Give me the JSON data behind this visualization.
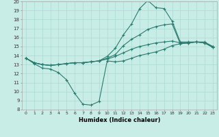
{
  "xlabel": "Humidex (Indice chaleur)",
  "xlim": [
    -0.5,
    23.5
  ],
  "ylim": [
    8,
    20
  ],
  "yticks": [
    8,
    9,
    10,
    11,
    12,
    13,
    14,
    15,
    16,
    17,
    18,
    19,
    20
  ],
  "xticks": [
    0,
    1,
    2,
    3,
    4,
    5,
    6,
    7,
    8,
    9,
    10,
    11,
    12,
    13,
    14,
    15,
    16,
    17,
    18,
    19,
    20,
    21,
    22,
    23
  ],
  "bg_color": "#c8ece6",
  "line_color": "#2a7b6f",
  "grid_color": "#b0ddd6",
  "curves": [
    {
      "x": [
        0,
        1,
        2,
        3,
        4,
        5,
        6,
        7,
        8,
        9,
        10,
        11,
        12,
        13,
        14,
        15,
        16,
        17,
        18,
        19,
        20,
        21,
        22,
        23
      ],
      "y": [
        13.7,
        13.1,
        12.6,
        12.5,
        12.1,
        11.3,
        9.8,
        8.6,
        8.5,
        8.9,
        13.4,
        13.3,
        13.4,
        13.7,
        14.0,
        14.2,
        14.4,
        14.7,
        15.1,
        15.3,
        15.4,
        15.5,
        15.4,
        14.9
      ]
    },
    {
      "x": [
        0,
        1,
        2,
        3,
        4,
        5,
        6,
        7,
        8,
        9,
        10,
        11,
        12,
        13,
        14,
        15,
        16,
        17,
        18,
        19,
        20,
        21,
        22,
        23
      ],
      "y": [
        13.7,
        13.2,
        13.0,
        12.9,
        13.0,
        13.1,
        13.2,
        13.2,
        13.3,
        13.4,
        13.9,
        14.8,
        16.3,
        17.5,
        19.2,
        20.1,
        19.3,
        19.2,
        17.8,
        15.5,
        15.5,
        15.5,
        15.5,
        15.0
      ]
    },
    {
      "x": [
        0,
        1,
        2,
        3,
        4,
        5,
        6,
        7,
        8,
        9,
        10,
        11,
        12,
        13,
        14,
        15,
        16,
        17,
        18,
        19,
        20,
        21,
        22,
        23
      ],
      "y": [
        13.7,
        13.2,
        13.0,
        12.9,
        13.0,
        13.1,
        13.2,
        13.2,
        13.3,
        13.4,
        13.7,
        14.1,
        15.1,
        15.8,
        16.3,
        16.9,
        17.2,
        17.4,
        17.5,
        15.3,
        15.4,
        15.5,
        15.4,
        15.0
      ]
    },
    {
      "x": [
        0,
        1,
        2,
        3,
        4,
        5,
        6,
        7,
        8,
        9,
        10,
        11,
        12,
        13,
        14,
        15,
        16,
        17,
        18,
        19,
        20,
        21,
        22,
        23
      ],
      "y": [
        13.7,
        13.2,
        13.0,
        12.9,
        13.0,
        13.1,
        13.2,
        13.2,
        13.3,
        13.4,
        13.6,
        13.9,
        14.3,
        14.7,
        15.0,
        15.2,
        15.4,
        15.5,
        15.6,
        15.4,
        15.4,
        15.5,
        15.4,
        14.9
      ]
    }
  ]
}
